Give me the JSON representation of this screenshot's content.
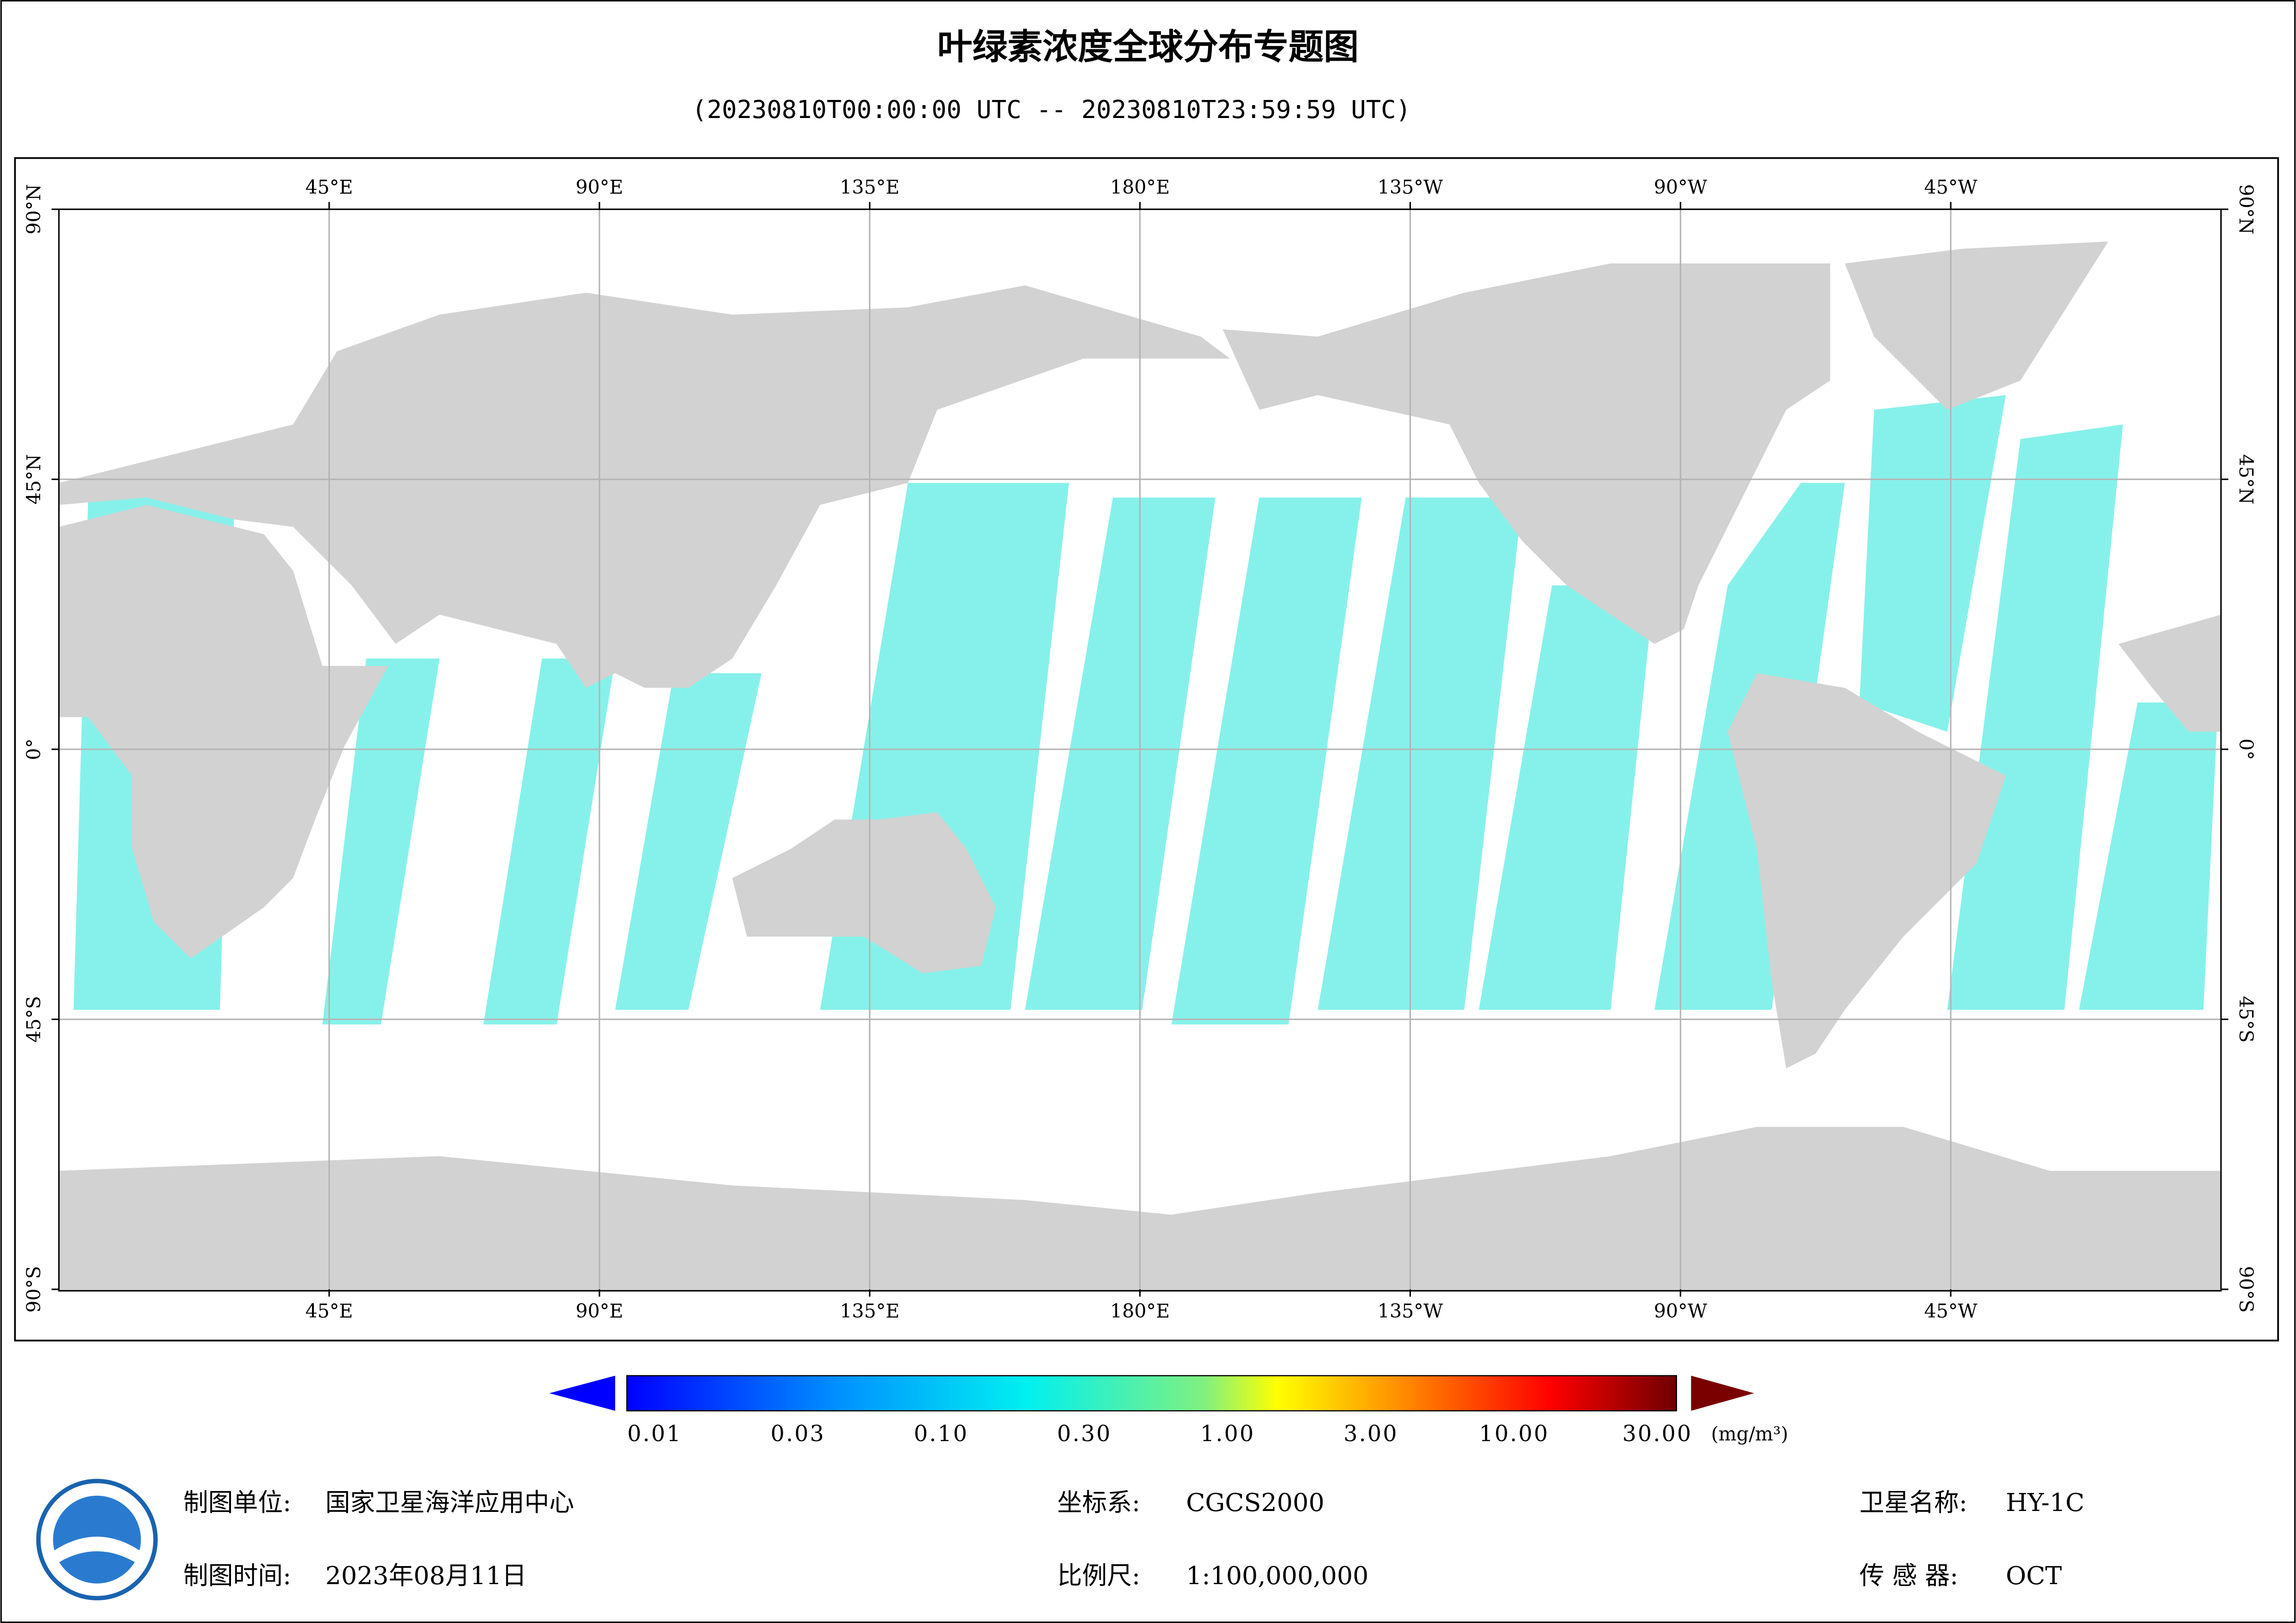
{
  "header": {
    "title": "叶绿素浓度全球分布专题图",
    "subtitle": "(20230810T00:00:00 UTC -- 20230810T23:59:59 UTC)"
  },
  "map": {
    "lon_labels": [
      "45°E",
      "90°E",
      "135°E",
      "180°E",
      "135°W",
      "90°W",
      "45°W"
    ],
    "lat_labels": [
      "90°N",
      "45°N",
      "0°",
      "45°S",
      "90°S"
    ]
  },
  "colorbar": {
    "ticks": [
      "0.01",
      "0.03",
      "0.10",
      "0.30",
      "1.00",
      "3.00",
      "10.00",
      "30.00"
    ],
    "unit": "(mg/m³)"
  },
  "footer": {
    "org_label": "制图单位:",
    "org": "国家卫星海洋应用中心",
    "date_label": "制图时间:",
    "date": "2023年08月11日",
    "crs_label": "坐标系:",
    "crs": "CGCS2000",
    "scale_label": "比例尺:",
    "scale": "1:100,000,000",
    "sat_label": "卫星名称:",
    "sat": "HY-1C",
    "sensor_label": "传 感 器:",
    "sensor": "OCT"
  }
}
